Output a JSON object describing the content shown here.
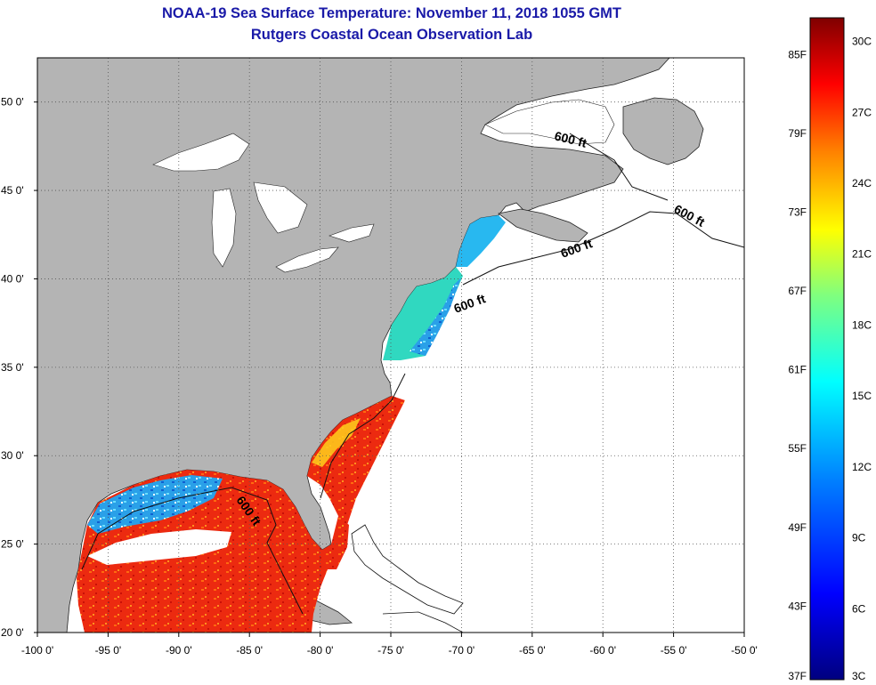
{
  "header": {
    "title": "NOAA-19 Sea Surface Temperature:  November 11, 2018 1055 GMT",
    "subtitle": "Rutgers Coastal Ocean Observation Lab"
  },
  "map": {
    "lon_range": [
      -100,
      -50
    ],
    "lat_range": [
      20,
      52.5
    ],
    "lon_ticks": [
      "-100 0'",
      "-95 0'",
      "-90 0'",
      "-85 0'",
      "-80 0'",
      "-75 0'",
      "-70 0'",
      "-65 0'",
      "-60 0'",
      "-55 0'",
      "-50 0'"
    ],
    "lat_ticks": [
      "20 0'",
      "25 0'",
      "30 0'",
      "35 0'",
      "40 0'",
      "45 0'",
      "50 0'"
    ],
    "contour_labels": [
      "600 ft",
      "600 ft",
      "600 ft",
      "600 ft",
      "600 ft"
    ],
    "colors": {
      "land": "#b4b4b4",
      "no_data": "#ffffff",
      "lakes": "#ffffff"
    }
  },
  "colorbar": {
    "fahrenheit_labels": [
      "85F",
      "79F",
      "73F",
      "67F",
      "61F",
      "55F",
      "49F",
      "43F",
      "37F"
    ],
    "celsius_labels": [
      "30C",
      "27C",
      "24C",
      "21C",
      "18C",
      "15C",
      "12C",
      "9C",
      "6C",
      "3C"
    ],
    "range_celsius": [
      3,
      31
    ],
    "gradient": [
      "#00007f",
      "#0000ff",
      "#007fff",
      "#00ffff",
      "#7fff7f",
      "#ffff00",
      "#ff7f00",
      "#ff0000",
      "#7f0000"
    ]
  }
}
